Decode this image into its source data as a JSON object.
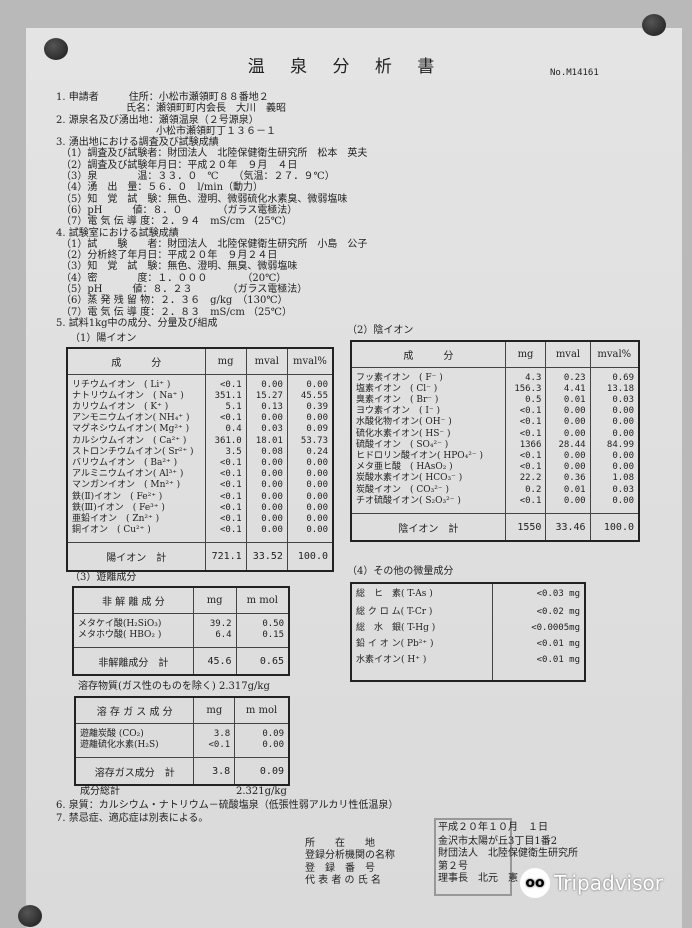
{
  "title": "温 泉 分 析 書",
  "doc_no": "No.M14161",
  "sections": [
    "1. 申請者　　　住所：小松市瀬領町８８番地２",
    "　　　　　　　氏名：瀬領町町内会長　大川　義昭",
    "2. 源泉名及び湧出地：瀬領温泉（２号源泉）",
    "　　　　　　　　　　小松市瀬領町丁１３６－１",
    "3. 湧出地における調査及び試験成績",
    "　（1）調査及び試験者：財団法人　北陸保健衛生研究所　松本　英夫",
    "　（2）調査及び試験年月日：平成２０年　９月　４日",
    "　（3）泉　　　　温：３３．０　℃　　（気温：２７．９℃）",
    "　（4）湧　出　量：５６．０　l/min（動力）",
    "　（5）知　覚　試　験：無色、澄明、微弱硫化水素臭、微弱塩味",
    "　（6）pH　　　値：８．０　　　　（ガラス電極法）",
    "　（7）電 気 伝 導 度：２．９４　mS/cm （25℃）",
    "4. 試験室における試験成績",
    "　（1）試　　験　　者：財団法人　北陸保健衛生研究所　小島　公子",
    "　（2）分析終了年月日：平成２０年　９月２４日",
    "　（3）知　覚　試　験：無色、澄明、無臭、微弱塩味",
    "　（4）密　　　　度：１．０００　　　　（20℃）",
    "　（5）pH　　　値：８．２３　　　　（ガラス電極法）",
    "　（6）蒸 発 残 留 物：２．３６　g/kg　（130℃）",
    "　（7）電 気 伝 導 度：２．８３　mS/cm （25℃）",
    "5. 試料1kg中の成分、分量及び組成"
  ],
  "cation": {
    "label": "（1）陽イオン",
    "headers": [
      "成　　　分",
      "mg",
      "mval",
      "mval%"
    ],
    "rows": [
      [
        "リチウムイオン　( Li⁺ )",
        "<0.1",
        "0.00",
        "0.00"
      ],
      [
        "ナトリウムイオン　( Na⁺ )",
        "351.1",
        "15.27",
        "45.55"
      ],
      [
        "カリウムイオン　( K⁺ )",
        "5.1",
        "0.13",
        "0.39"
      ],
      [
        "アンモニウムイオン( NH₄⁺ )",
        "<0.1",
        "0.00",
        "0.00"
      ],
      [
        "マグネシウムイオン( Mg²⁺ )",
        "0.4",
        "0.03",
        "0.09"
      ],
      [
        "カルシウムイオン　( Ca²⁺ )",
        "361.0",
        "18.01",
        "53.73"
      ],
      [
        "ストロンチウムイオン( Sr²⁺ )",
        "3.5",
        "0.08",
        "0.24"
      ],
      [
        "バリウムイオン　( Ba²⁺ )",
        "<0.1",
        "0.00",
        "0.00"
      ],
      [
        "アルミニウムイオン( Al³⁺ )",
        "<0.1",
        "0.00",
        "0.00"
      ],
      [
        "マンガンイオン　( Mn²⁺ )",
        "<0.1",
        "0.00",
        "0.00"
      ],
      [
        "鉄(Ⅱ)イオン　( Fe²⁺ )",
        "<0.1",
        "0.00",
        "0.00"
      ],
      [
        "鉄(Ⅲ)イオン　( Fe³⁺ )",
        "<0.1",
        "0.00",
        "0.00"
      ],
      [
        "亜鉛イオン　( Zn²⁺ )",
        "<0.1",
        "0.00",
        "0.00"
      ],
      [
        "銅イオン　( Cu²⁺ )",
        "<0.1",
        "0.00",
        "0.00"
      ]
    ],
    "total": [
      "陽イオン　計",
      "721.1",
      "33.52",
      "100.0"
    ]
  },
  "anion": {
    "label": "（2）陰イオン",
    "headers": [
      "成　　　分",
      "mg",
      "mval",
      "mval%"
    ],
    "rows": [
      [
        "フッ素イオン　( F⁻ )",
        "4.3",
        "0.23",
        "0.69"
      ],
      [
        "塩素イオン　( Cl⁻ )",
        "156.3",
        "4.41",
        "13.18"
      ],
      [
        "臭素イオン　( Br⁻ )",
        "0.5",
        "0.01",
        "0.03"
      ],
      [
        "ヨウ素イオン　( I⁻ )",
        "<0.1",
        "0.00",
        "0.00"
      ],
      [
        "水酸化物イオン( OH⁻ )",
        "<0.1",
        "0.00",
        "0.00"
      ],
      [
        "硫化水素イオン( HS⁻ )",
        "<0.1",
        "0.00",
        "0.00"
      ],
      [
        "硫酸イオン　( SO₄²⁻ )",
        "1366",
        "28.44",
        "84.99"
      ],
      [
        "ヒドロリン酸イオン( HPO₄²⁻ )",
        "<0.1",
        "0.00",
        "0.00"
      ],
      [
        "メタ亜ヒ酸　( HAsO₂ )",
        "<0.1",
        "0.00",
        "0.00"
      ],
      [
        "炭酸水素イオン( HCO₃⁻ )",
        "22.2",
        "0.36",
        "1.08"
      ],
      [
        "炭酸イオン　( CO₃²⁻ )",
        "0.2",
        "0.01",
        "0.03"
      ],
      [
        "チオ硫酸イオン( S₂O₃²⁻ )",
        "<0.1",
        "0.00",
        "0.00"
      ]
    ],
    "total": [
      "陰イオン　計",
      "1550",
      "33.46",
      "100.0"
    ]
  },
  "free": {
    "label": "（3）遊離成分",
    "nondiss": {
      "headers": [
        "非 解 離 成 分",
        "mg",
        "m mol"
      ],
      "rows": [
        [
          "メタケイ酸(H₂SiO₃)",
          "39.2",
          "0.50"
        ],
        [
          "メタホウ酸( HBO₂ )",
          "6.4",
          "0.15"
        ]
      ],
      "total": [
        "非解離成分　計",
        "45.6",
        "0.65"
      ]
    },
    "dissolved_solids": "溶存物質(ガス性のものを除く) 2.317g/kg",
    "gas": {
      "headers": [
        "溶 存 ガ ス 成 分",
        "mg",
        "m mol"
      ],
      "rows": [
        [
          "遊離炭酸 (CO₂)",
          "3.8",
          "0.09"
        ],
        [
          "遊離硫化水素(H₂S)",
          "<0.1",
          "0.00"
        ]
      ],
      "total": [
        "溶存ガス成分　計",
        "3.8",
        "0.09"
      ]
    },
    "grand_total_label": "成分総計",
    "grand_total_value": "2.321g/kg"
  },
  "trace": {
    "label": "（4）その他の微量成分",
    "rows": [
      [
        "総　ヒ　素( T-As )",
        "<0.03 mg"
      ],
      [
        "総 ク ロ ム( T-Cr )",
        "<0.02 mg"
      ],
      [
        "総　水　銀( T-Hg )",
        "<0.0005mg"
      ],
      [
        "鉛 イ オ ン( Pb²⁺ )",
        "<0.01 mg"
      ],
      [
        "水素イオン( H⁺ )",
        "<0.01 mg"
      ]
    ]
  },
  "footer": [
    "6. 泉質：カルシウム・ナトリウム－硫酸塩泉（低張性弱アルカリ性低温泉）",
    "7. 禁忌症、適応症は別表による。"
  ],
  "signature": {
    "date": "平成２０年１０月　１日",
    "labels": [
      "所　　在　　地",
      "登録分析機関の名称",
      "登　録　番　号",
      "代 表 者 の 氏 名"
    ],
    "values": [
      "金沢市太陽が丘3丁目1番2",
      "財団法人　北陸保健衛生研究所",
      "第２号",
      "理事長　北元　憲"
    ]
  },
  "watermark": "Tripadvisor"
}
